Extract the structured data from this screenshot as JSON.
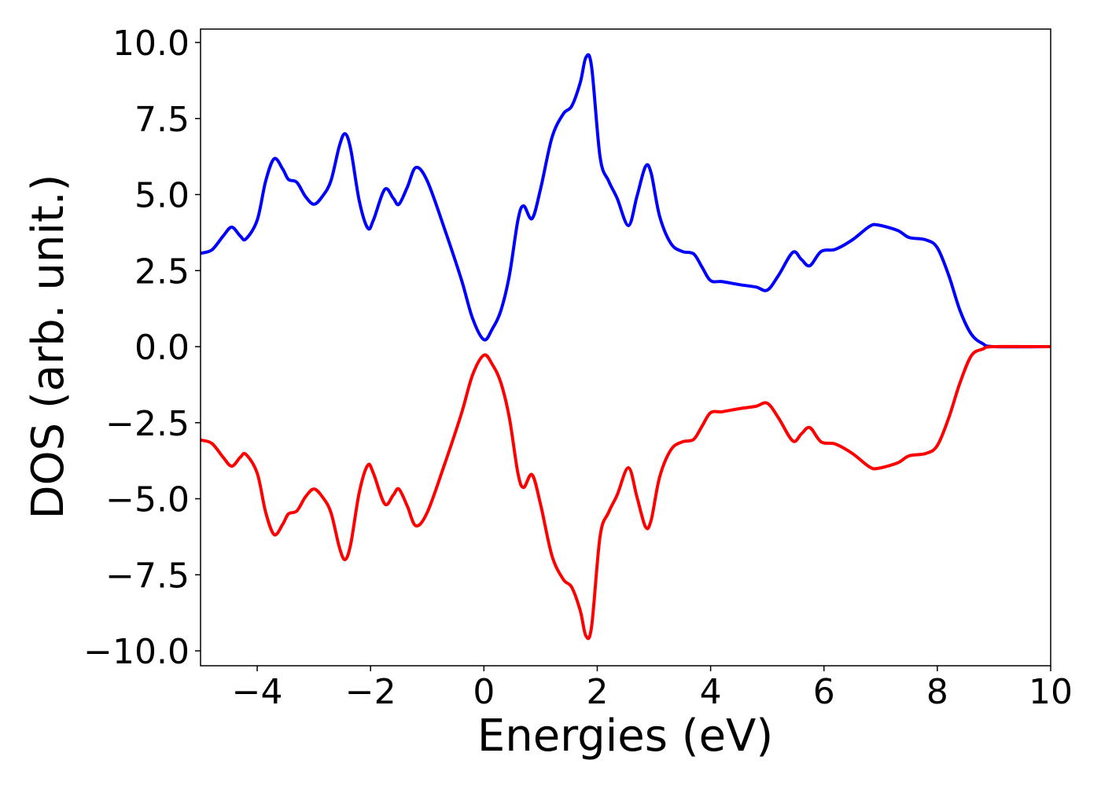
{
  "chart_data": {
    "type": "line",
    "xlabel": "Energies (eV)",
    "ylabel": "DOS (arb. unit.)",
    "x": [
      -5,
      -4.8,
      -4.6,
      -4.45,
      -4.3,
      -4.2,
      -4.0,
      -3.85,
      -3.7,
      -3.55,
      -3.45,
      -3.3,
      -3.15,
      -3.0,
      -2.85,
      -2.7,
      -2.55,
      -2.45,
      -2.35,
      -2.2,
      -2.05,
      -1.95,
      -1.75,
      -1.6,
      -1.5,
      -1.35,
      -1.2,
      -1.0,
      -0.7,
      -0.4,
      -0.2,
      0.0,
      0.15,
      0.3,
      0.45,
      0.6,
      0.7,
      0.85,
      1.0,
      1.2,
      1.4,
      1.55,
      1.7,
      1.8,
      1.9,
      2.05,
      2.2,
      2.35,
      2.55,
      2.7,
      2.85,
      2.95,
      3.1,
      3.3,
      3.5,
      3.7,
      3.85,
      4.0,
      4.2,
      4.5,
      4.8,
      5.0,
      5.2,
      5.45,
      5.6,
      5.75,
      5.95,
      6.2,
      6.5,
      6.8,
      6.95,
      7.3,
      7.5,
      7.8,
      8.0,
      8.2,
      8.4,
      8.6,
      8.8,
      9.0,
      10
    ],
    "series": [
      {
        "color": "#0000ff",
        "values": [
          3.07,
          3.18,
          3.64,
          3.93,
          3.64,
          3.54,
          4.16,
          5.45,
          6.18,
          5.84,
          5.5,
          5.4,
          4.94,
          4.68,
          4.94,
          5.45,
          6.6,
          7.0,
          6.49,
          4.8,
          3.9,
          4.16,
          5.17,
          4.88,
          4.68,
          5.25,
          5.89,
          5.45,
          3.9,
          2.22,
          0.93,
          0.23,
          0.59,
          1.19,
          2.35,
          4.16,
          4.63,
          4.21,
          5.19,
          6.87,
          7.65,
          7.91,
          8.68,
          9.51,
          9.2,
          6.23,
          5.45,
          4.88,
          3.98,
          4.94,
          5.92,
          5.71,
          4.29,
          3.39,
          3.13,
          3.05,
          2.61,
          2.17,
          2.14,
          2.04,
          1.96,
          1.86,
          2.35,
          3.1,
          2.87,
          2.66,
          3.13,
          3.2,
          3.51,
          3.95,
          4.0,
          3.82,
          3.59,
          3.51,
          3.25,
          2.35,
          1.19,
          0.41,
          0.1,
          0,
          0
        ]
      },
      {
        "color": "#ff0000",
        "values": [
          -3.07,
          -3.18,
          -3.64,
          -3.93,
          -3.64,
          -3.54,
          -4.16,
          -5.45,
          -6.18,
          -5.84,
          -5.5,
          -5.4,
          -4.94,
          -4.68,
          -4.94,
          -5.45,
          -6.6,
          -7.0,
          -6.49,
          -4.8,
          -3.9,
          -4.16,
          -5.17,
          -4.88,
          -4.68,
          -5.25,
          -5.89,
          -5.45,
          -3.9,
          -2.22,
          -0.93,
          -0.28,
          -0.59,
          -1.19,
          -2.35,
          -4.16,
          -4.63,
          -4.21,
          -5.19,
          -6.87,
          -7.65,
          -7.91,
          -8.68,
          -9.51,
          -9.2,
          -6.23,
          -5.45,
          -4.88,
          -3.98,
          -4.94,
          -5.92,
          -5.71,
          -4.29,
          -3.39,
          -3.13,
          -3.05,
          -2.61,
          -2.17,
          -2.14,
          -2.04,
          -1.96,
          -1.86,
          -2.35,
          -3.1,
          -2.87,
          -2.66,
          -3.13,
          -3.2,
          -3.51,
          -3.95,
          -4.0,
          -3.82,
          -3.59,
          -3.51,
          -3.25,
          -2.35,
          -1.19,
          -0.3,
          -0.08,
          0,
          0
        ]
      }
    ],
    "xlim": [
      -5,
      10
    ],
    "xticks": [
      {
        "value": -4,
        "label": "−4"
      },
      {
        "value": -2,
        "label": "−2"
      },
      0,
      2,
      4,
      6,
      8,
      10
    ],
    "ylim": [
      -10.49,
      10.44
    ],
    "yticks": [
      {
        "value": -10,
        "label": "−10.0"
      },
      {
        "value": -7.5,
        "label": "−7.5"
      },
      {
        "value": -5,
        "label": "−5.0"
      },
      {
        "value": -2.5,
        "label": "−2.5"
      },
      {
        "value": 0,
        "label": "0.0"
      },
      2.5,
      {
        "value": 5,
        "label": "5.0"
      },
      7.5,
      {
        "value": 10,
        "label": "10.0"
      }
    ]
  }
}
